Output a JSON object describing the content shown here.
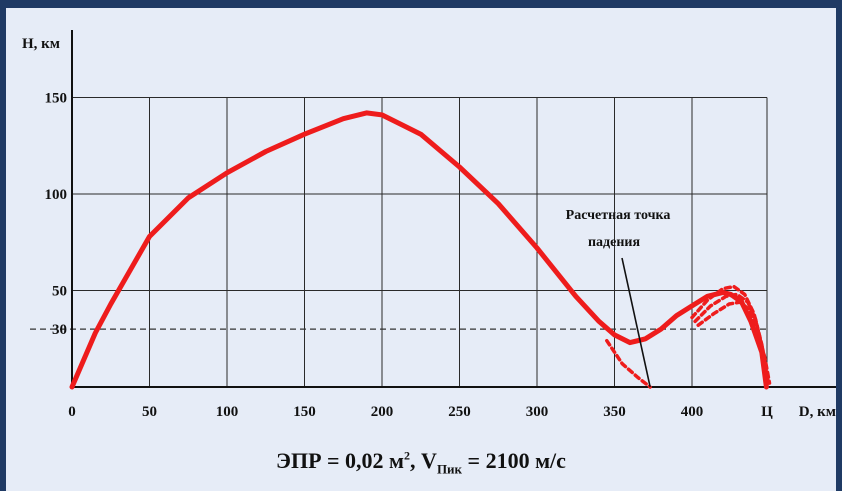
{
  "chart_data": {
    "type": "line",
    "ylabel": "H, км",
    "xlabel": "D, км",
    "x_ticks": [
      "0",
      "50",
      "100",
      "150",
      "200",
      "250",
      "300",
      "350",
      "400"
    ],
    "x_end_marker": "Ц",
    "y_ticks": [
      "150",
      "100",
      "50",
      "30"
    ],
    "xlim": [
      0,
      450
    ],
    "ylim": [
      0,
      150
    ],
    "reference_line": {
      "y": 30,
      "style": "dashed"
    },
    "annotation": {
      "line1": "Расчетная точка",
      "line2": "падения",
      "target": [
        373,
        0
      ]
    },
    "series": [
      {
        "style": "solid",
        "color": "#ee1c1c",
        "points": [
          [
            0,
            0
          ],
          [
            15,
            28
          ],
          [
            25,
            43
          ],
          [
            50,
            78
          ],
          [
            75,
            98
          ],
          [
            100,
            111
          ],
          [
            125,
            122
          ],
          [
            150,
            131
          ],
          [
            175,
            139
          ],
          [
            190,
            142
          ],
          [
            200,
            141
          ],
          [
            225,
            131
          ],
          [
            250,
            114
          ],
          [
            275,
            95
          ],
          [
            300,
            72
          ],
          [
            325,
            47
          ],
          [
            340,
            34
          ],
          [
            350,
            27
          ],
          [
            360,
            23
          ],
          [
            370,
            25
          ],
          [
            380,
            30
          ],
          [
            390,
            37
          ],
          [
            400,
            42
          ],
          [
            410,
            47
          ],
          [
            420,
            49
          ],
          [
            425,
            48
          ],
          [
            432,
            44
          ],
          [
            438,
            34
          ],
          [
            445,
            18
          ],
          [
            448,
            0
          ]
        ]
      },
      {
        "style": "dashed",
        "color": "#ee1c1c",
        "points": [
          [
            345,
            24
          ],
          [
            355,
            12
          ],
          [
            365,
            5
          ],
          [
            373,
            0
          ]
        ]
      },
      {
        "style": "dashed",
        "color": "#ee1c1c",
        "points": [
          [
            400,
            36
          ],
          [
            410,
            45
          ],
          [
            420,
            51
          ],
          [
            427,
            52
          ],
          [
            434,
            48
          ],
          [
            440,
            38
          ],
          [
            445,
            22
          ],
          [
            448,
            2
          ]
        ]
      },
      {
        "style": "dashed",
        "color": "#ee1c1c",
        "points": [
          [
            402,
            34
          ],
          [
            412,
            42
          ],
          [
            422,
            47
          ],
          [
            429,
            48
          ],
          [
            436,
            44
          ],
          [
            441,
            35
          ],
          [
            446,
            18
          ],
          [
            449,
            2
          ]
        ]
      },
      {
        "style": "dashed",
        "color": "#ee1c1c",
        "points": [
          [
            404,
            32
          ],
          [
            414,
            38
          ],
          [
            424,
            43
          ],
          [
            431,
            44
          ],
          [
            437,
            40
          ],
          [
            442,
            31
          ],
          [
            447,
            15
          ],
          [
            450,
            2
          ]
        ]
      }
    ]
  },
  "caption": {
    "prefix": "ЭПР = 0,02 м",
    "sup": "2",
    "middle": ", V",
    "sub": "Пик",
    "suffix": " = 2100 м/с"
  },
  "colors": {
    "background": "#e6ecf7",
    "border": "#1f3a64",
    "curve": "#ee1c1c"
  }
}
